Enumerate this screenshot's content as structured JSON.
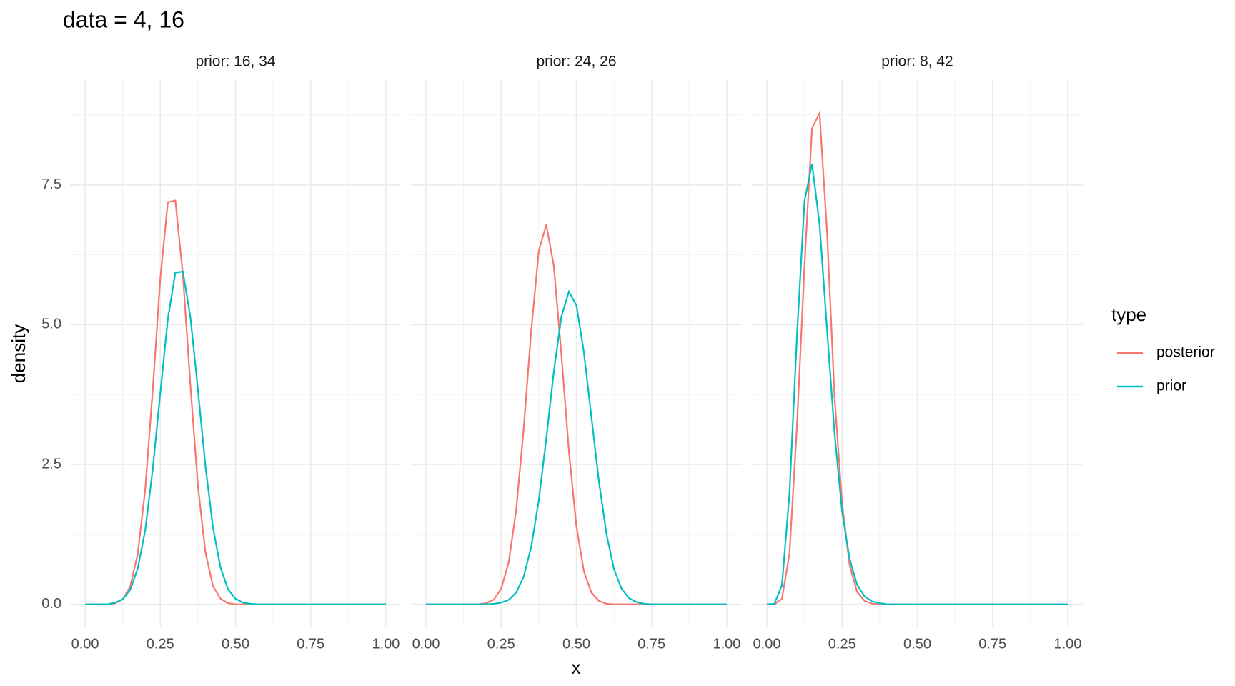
{
  "chart_data": {
    "type": "line",
    "title": "data = 4, 16",
    "x_label": "x",
    "y_label": "density",
    "legend": {
      "title": "type",
      "position": "right"
    },
    "x": [
      0,
      0.025,
      0.05,
      0.075,
      0.1,
      0.125,
      0.15,
      0.175,
      0.2,
      0.225,
      0.25,
      0.275,
      0.3,
      0.325,
      0.35,
      0.375,
      0.4,
      0.425,
      0.45,
      0.475,
      0.5,
      0.525,
      0.55,
      0.575,
      0.6,
      0.625,
      0.65,
      0.675,
      0.7,
      0.725,
      0.75,
      0.775,
      0.8,
      0.825,
      0.85,
      0.875,
      0.9,
      0.925,
      0.95,
      0.975,
      1
    ],
    "xlim": [
      -0.05,
      1.05
    ],
    "xticks": [
      {
        "value": 0,
        "label": "0.00"
      },
      {
        "value": 0.25,
        "label": "0.25"
      },
      {
        "value": 0.5,
        "label": "0.50"
      },
      {
        "value": 0.75,
        "label": "0.75"
      },
      {
        "value": 1,
        "label": "1.00"
      }
    ],
    "x_minor_ticks": [
      0.125,
      0.375,
      0.625,
      0.875
    ],
    "ylim": [
      -0.4,
      9.4
    ],
    "yticks": [
      {
        "value": 0,
        "label": "0.0"
      },
      2.5,
      {
        "value": 5,
        "label": "5.0"
      },
      7.5
    ],
    "y_minor_ticks": [
      1.25,
      3.75,
      6.25,
      8.75
    ],
    "grid": true,
    "facets": [
      {
        "title": "prior: 16, 34",
        "series": [
          {
            "name": "posterior",
            "color": "#F8766D",
            "values": [
              0,
              0,
              0,
              0,
              0.02,
              0.09,
              0.32,
              0.9,
              2.06,
              3.84,
              5.83,
              7.19,
              7.22,
              5.9,
              3.92,
              2.12,
              0.93,
              0.33,
              0.1,
              0.02,
              0,
              0,
              0,
              0,
              0,
              0,
              0,
              0,
              0,
              0,
              0,
              0,
              0,
              0,
              0,
              0,
              0,
              0,
              0,
              0,
              0
            ]
          },
          {
            "name": "prior",
            "color": "#00BFC4",
            "values": [
              0,
              0,
              0,
              0,
              0.03,
              0.09,
              0.26,
              0.64,
              1.33,
              2.42,
              3.78,
              5.1,
              5.93,
              5.95,
              5.14,
              3.84,
              2.47,
              1.38,
              0.66,
              0.27,
              0.1,
              0.03,
              0.01,
              0,
              0,
              0,
              0,
              0,
              0,
              0,
              0,
              0,
              0,
              0,
              0,
              0,
              0,
              0,
              0,
              0,
              0
            ]
          }
        ]
      },
      {
        "title": "prior: 24, 26",
        "series": [
          {
            "name": "posterior",
            "color": "#F8766D",
            "values": [
              0,
              0,
              0,
              0,
              0,
              0,
              0,
              0,
              0.02,
              0.08,
              0.28,
              0.75,
              1.69,
              3.15,
              4.9,
              6.32,
              6.79,
              6.05,
              4.48,
              2.75,
              1.4,
              0.59,
              0.21,
              0.06,
              0.01,
              0,
              0,
              0,
              0,
              0,
              0,
              0,
              0,
              0,
              0,
              0,
              0,
              0,
              0,
              0,
              0
            ]
          },
          {
            "name": "prior",
            "color": "#00BFC4",
            "values": [
              0,
              0,
              0,
              0,
              0,
              0,
              0,
              0,
              0,
              0.01,
              0.03,
              0.08,
              0.21,
              0.5,
              1.03,
              1.86,
              2.96,
              4.16,
              5.14,
              5.59,
              5.35,
              4.51,
              3.35,
              2.19,
              1.26,
              0.63,
              0.28,
              0.11,
              0.04,
              0.01,
              0,
              0,
              0,
              0,
              0,
              0,
              0,
              0,
              0,
              0,
              0
            ]
          }
        ]
      },
      {
        "title": "prior: 8, 42",
        "series": [
          {
            "name": "posterior",
            "color": "#F8766D",
            "values": [
              0,
              0,
              0.1,
              0.9,
              3.19,
              6.06,
              8.51,
              8.78,
              6.65,
              3.7,
              1.8,
              0.7,
              0.22,
              0.06,
              0.01,
              0,
              0,
              0,
              0,
              0,
              0,
              0,
              0,
              0,
              0,
              0,
              0,
              0,
              0,
              0,
              0,
              0,
              0,
              0,
              0,
              0,
              0,
              0,
              0,
              0,
              0
            ]
          },
          {
            "name": "prior",
            "color": "#00BFC4",
            "values": [
              0,
              0.01,
              0.34,
              1.97,
              4.8,
              7.21,
              7.88,
              6.8,
              4.91,
              3.05,
              1.66,
              0.81,
              0.35,
              0.14,
              0.05,
              0.02,
              0,
              0,
              0,
              0,
              0,
              0,
              0,
              0,
              0,
              0,
              0,
              0,
              0,
              0,
              0,
              0,
              0,
              0,
              0,
              0,
              0,
              0,
              0,
              0,
              0
            ]
          }
        ]
      }
    ]
  }
}
